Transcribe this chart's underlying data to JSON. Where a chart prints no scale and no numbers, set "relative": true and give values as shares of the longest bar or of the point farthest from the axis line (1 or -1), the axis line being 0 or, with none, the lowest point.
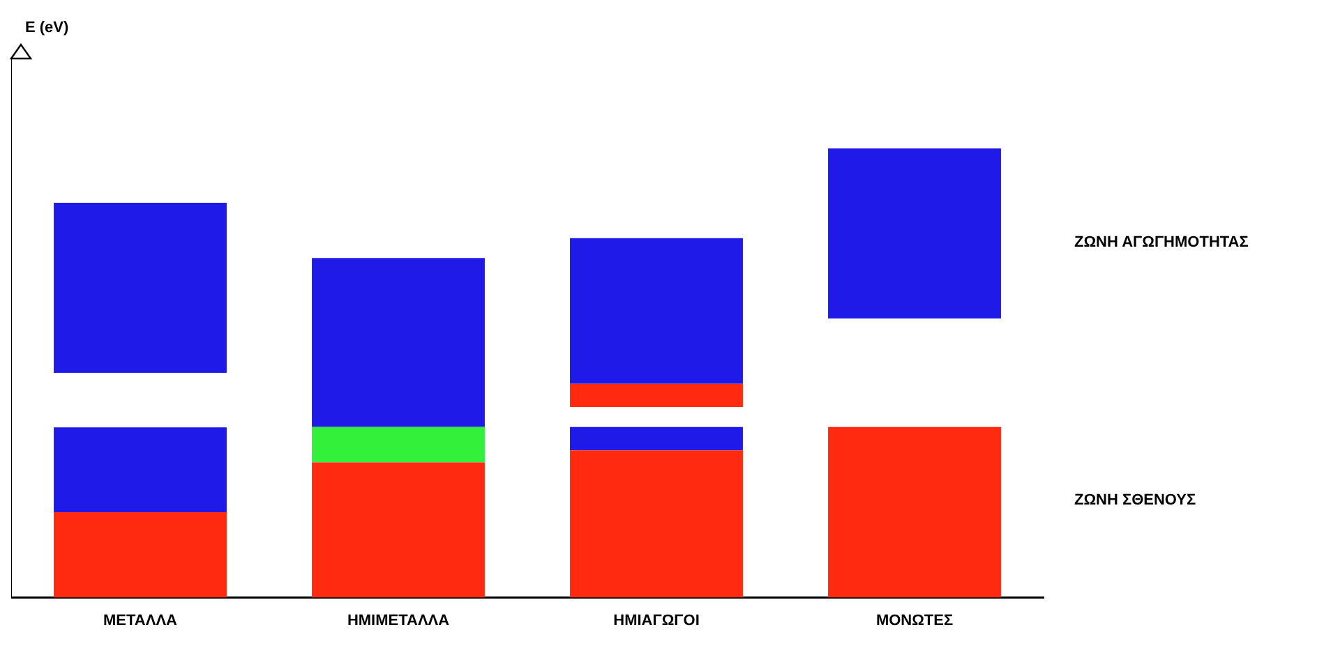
{
  "chart_data": {
    "type": "bar",
    "relative": true,
    "stacked": true,
    "categories": [
      "ΜΕΤΑΛΛΑ",
      "ΗΜΙΜΕΤΑΛΛΑ",
      "ΗΜΙΑΓΩΓΟΙ",
      "ΜΟΝΩΤΕΣ"
    ],
    "series": [
      {
        "colors": [
          "#ff2a10",
          "#ff2a10",
          "#ff2a10",
          "#ff2a10"
        ],
        "values": [
          0.19,
          0.301,
          0.328,
          0.38
        ]
      },
      {
        "colors": [
          "#1f1ae8",
          "#33f03a",
          "#1f1ae8",
          "#ffffff"
        ],
        "values": [
          0.189,
          0.079,
          0.052,
          0.241
        ]
      },
      {
        "colors": [
          "#ffffff",
          "#1f1ae8",
          "#ffffff",
          "#1f1ae8"
        ],
        "values": [
          0.121,
          0.376,
          0.044,
          0.379
        ]
      },
      {
        "colors": [
          "#1f1ae8",
          "#ffffff",
          "#ff2a10",
          "#ffffff"
        ],
        "values": [
          0.379,
          null,
          0.052,
          null
        ]
      },
      {
        "colors": [
          "#ffffff",
          "#ffffff",
          "#1f1ae8",
          "#ffffff"
        ],
        "values": [
          null,
          null,
          0.324,
          null
        ]
      }
    ],
    "annotations": [
      "E (eV)",
      "ΖΩΝΗ ΑΓΩΓΗΜΟΤΗΤΑΣ",
      "ΖΩΝΗ ΣΘΕΝΟΥΣ"
    ],
    "grid": false,
    "legend": false
  }
}
